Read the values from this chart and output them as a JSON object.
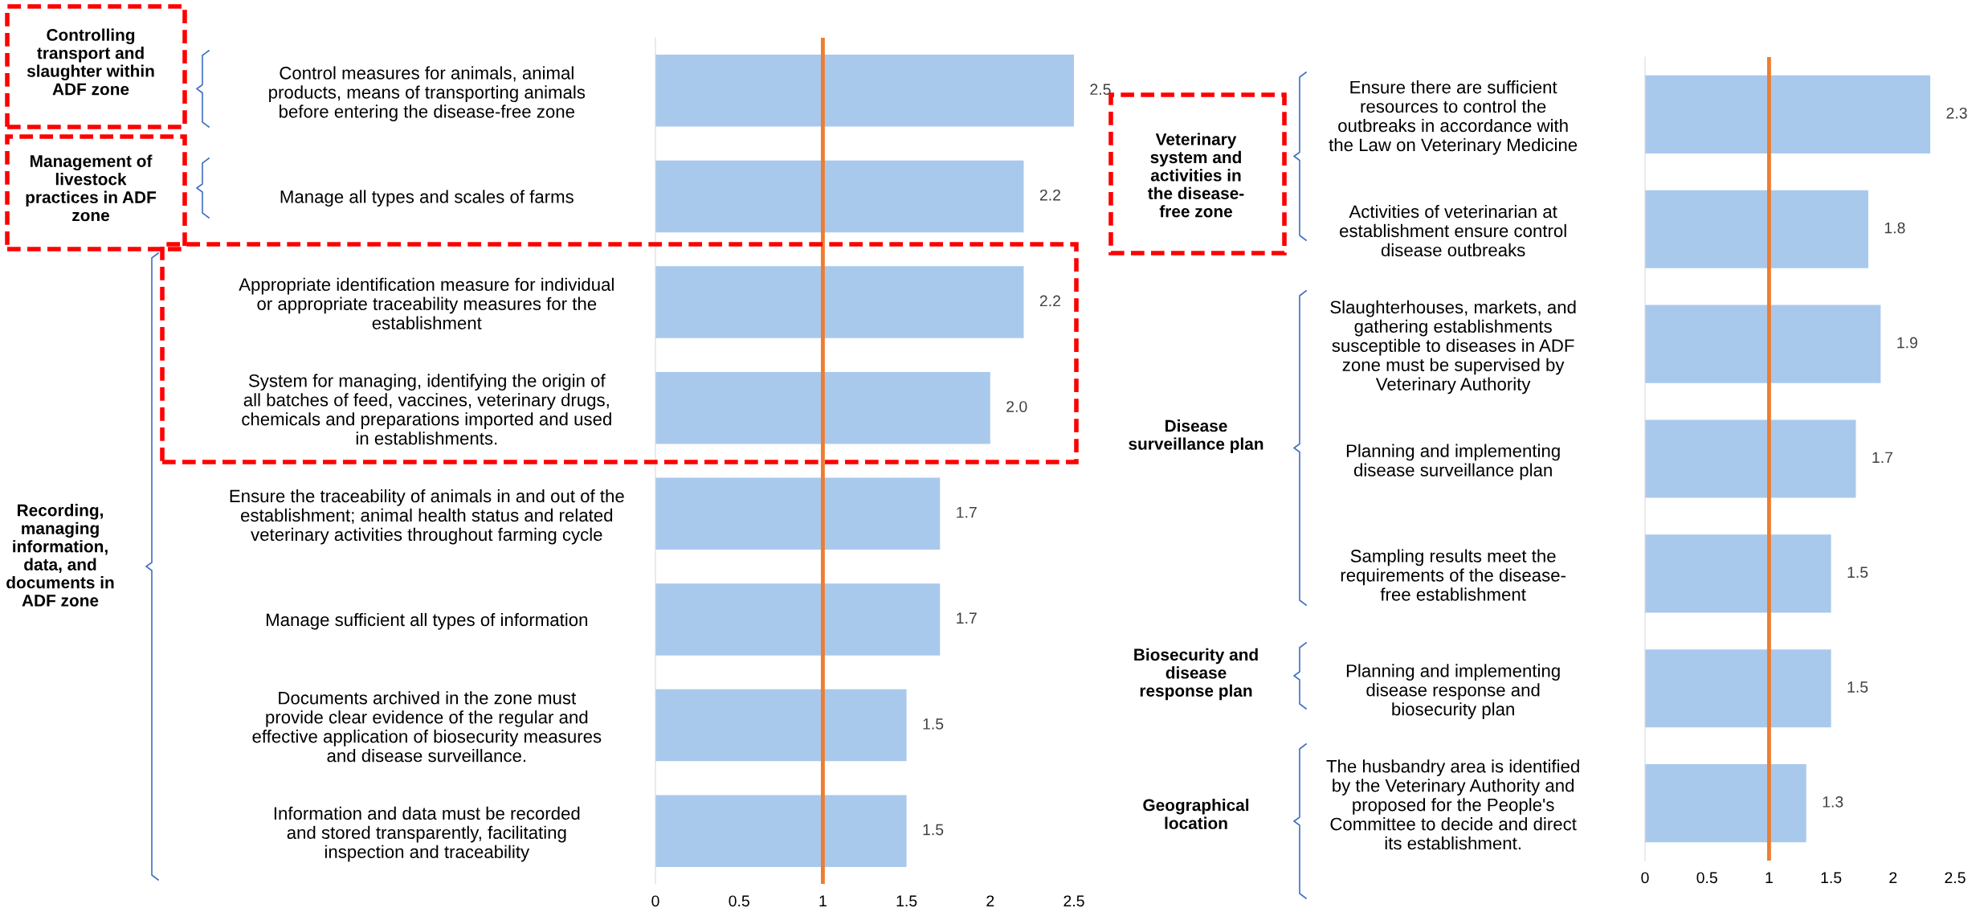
{
  "chart_data": [
    {
      "type": "bar",
      "orientation": "horizontal",
      "categories": [
        "Control measures for animals, animal\nproducts, means of transporting animals\nbefore entering the disease-free zone",
        "Manage all types and scales of farms",
        "Appropriate identification measure for individual\nor appropriate traceability measures for the\nestablishment",
        "System for managing, identifying the origin of\nall batches of feed, vaccines, veterinary drugs,\nchemicals and preparations imported and used\nin establishments.",
        "Ensure the traceability of animals in and out of the\nestablishment; animal health status and related\nveterinary activities throughout farming cycle",
        "Manage sufficient all types of information",
        "Documents archived in the zone must\nprovide clear evidence of the regular and\neffective application of biosecurity measures\nand disease surveillance.",
        "Information and data must be recorded\nand stored transparently, facilitating\ninspection and traceability"
      ],
      "values": [
        2.5,
        2.2,
        2.2,
        2.0,
        1.7,
        1.7,
        1.5,
        1.5
      ],
      "value_labels": [
        "2.5",
        "2.2",
        "2.2",
        "2.0",
        "1.7",
        "1.7",
        "1.5",
        "1.5"
      ],
      "color": "#a9c9ec",
      "xlim": [
        0,
        2.5
      ],
      "xticks": [
        0,
        0.5,
        1,
        1.5,
        2,
        2.5
      ],
      "ref_lines": [
        {
          "axis": "x",
          "value": 1,
          "color": "#ed7d31"
        }
      ],
      "annotations": [
        "Controlling\ntransport and\nslaughter within\nADF zone",
        "Management of\nlivestock\npractices in ADF\nzone",
        "Recording,\nmanaging\ninformation,\ndata, and\ndocuments in\nADF zone"
      ]
    },
    {
      "type": "bar",
      "orientation": "horizontal",
      "categories": [
        "Ensure there are sufficient\nresources to control the\noutbreaks in accordance with\nthe Law on Veterinary Medicine",
        "Activities of veterinarian at\nestablishment ensure control\ndisease outbreaks",
        "Slaughterhouses, markets, and\ngathering establishments\nsusceptible to diseases in ADF\nzone must be supervised by\nVeterinary Authority",
        "Planning and implementing\ndisease surveillance plan",
        "Sampling results meet the\nrequirements of the disease-\nfree establishment",
        "Planning and implementing\ndisease response and\nbiosecurity plan",
        "The husbandry area is identified\nby the Veterinary Authority and\nproposed for the People's\nCommittee to decide and direct\nits establishment."
      ],
      "values": [
        2.3,
        1.8,
        1.9,
        1.7,
        1.5,
        1.5,
        1.3
      ],
      "value_labels": [
        "2.3",
        "1.8",
        "1.9",
        "1.7",
        "1.5",
        "1.5",
        "1.3"
      ],
      "color": "#a9c9ec",
      "xlim": [
        0,
        2.5
      ],
      "xticks": [
        0,
        0.5,
        1,
        1.5,
        2,
        2.5
      ],
      "ref_lines": [
        {
          "axis": "x",
          "value": 1,
          "color": "#ed7d31"
        }
      ],
      "annotations": [
        "Veterinary\nsystem and\nactivities in\nthe disease-\nfree zone",
        "Disease\nsurveillance plan",
        "Biosecurity and\ndisease\nresponse plan",
        "Geographical\nlocation"
      ]
    }
  ]
}
